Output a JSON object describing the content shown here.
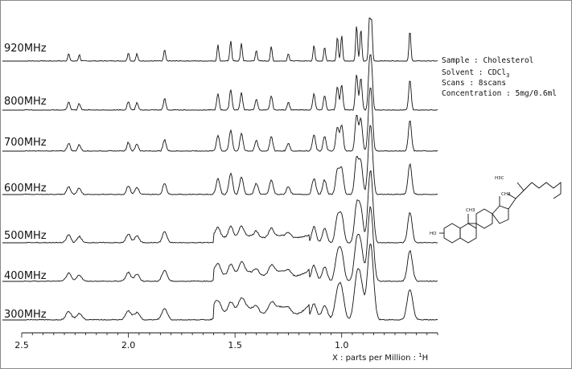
{
  "chart_data": {
    "type": "line",
    "title": "",
    "xlabel": "X : parts per Million : ",
    "xlabel_nucleus_sup": "1",
    "xlabel_nucleus": "H",
    "x_ticks": [
      "2.5",
      "2.0",
      "1.5",
      "1.0"
    ],
    "x_tick_values": [
      2.5,
      2.0,
      1.5,
      1.0
    ],
    "xlim": [
      2.5,
      0.55
    ],
    "x_reversed": true,
    "series": [
      {
        "name": "920MHz"
      },
      {
        "name": "800MHz"
      },
      {
        "name": "700MHz"
      },
      {
        "name": "600MHz"
      },
      {
        "name": "500MHz"
      },
      {
        "name": "400MHz"
      },
      {
        "name": "300MHz"
      }
    ],
    "info": [
      "Sample : Cholesterol",
      "Solvent : CDCl",
      "Scans : 8scans",
      "Concentration : 5mg/0.6ml"
    ],
    "info_solvent_subscript": "3",
    "structure_labels": [
      "H3C",
      "CH3",
      "CH3",
      "HO"
    ]
  }
}
